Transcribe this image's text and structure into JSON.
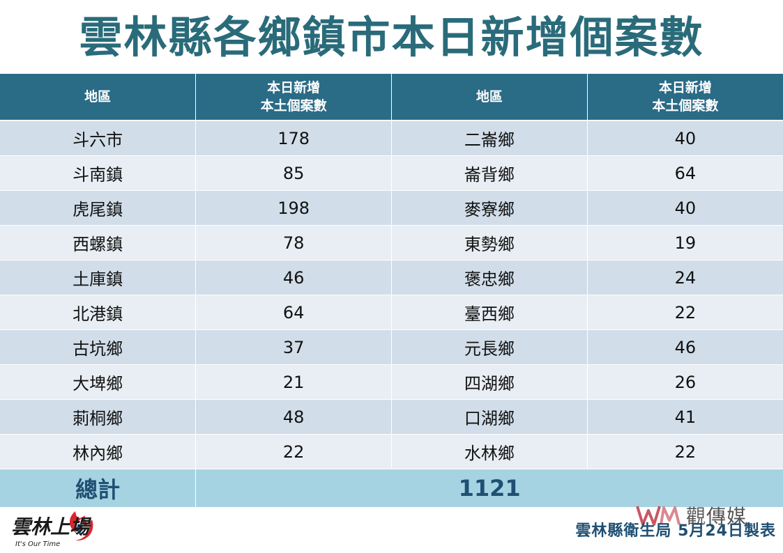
{
  "title": "雲林縣各鄉鎮市本日新增個案數",
  "table": {
    "headers": {
      "region": "地區",
      "cases_line1": "本日新增",
      "cases_line2": "本土個案數"
    },
    "rows": [
      {
        "left_region": "斗六市",
        "left_cases": "178",
        "right_region": "二崙鄉",
        "right_cases": "40"
      },
      {
        "left_region": "斗南鎮",
        "left_cases": "85",
        "right_region": "崙背鄉",
        "right_cases": "64"
      },
      {
        "left_region": "虎尾鎮",
        "left_cases": "198",
        "right_region": "麥寮鄉",
        "right_cases": "40"
      },
      {
        "left_region": "西螺鎮",
        "left_cases": "78",
        "right_region": "東勢鄉",
        "right_cases": "19"
      },
      {
        "left_region": "土庫鎮",
        "left_cases": "46",
        "right_region": "褒忠鄉",
        "right_cases": "24"
      },
      {
        "left_region": "北港鎮",
        "left_cases": "64",
        "right_region": "臺西鄉",
        "right_cases": "22"
      },
      {
        "left_region": "古坑鄉",
        "left_cases": "37",
        "right_region": "元長鄉",
        "right_cases": "46"
      },
      {
        "left_region": "大埤鄉",
        "left_cases": "21",
        "right_region": "四湖鄉",
        "right_cases": "26"
      },
      {
        "left_region": "莿桐鄉",
        "left_cases": "48",
        "right_region": "口湖鄉",
        "right_cases": "41"
      },
      {
        "left_region": "林內鄉",
        "left_cases": "22",
        "right_region": "水林鄉",
        "right_cases": "22"
      }
    ],
    "total_label": "總計",
    "total_value": "1121"
  },
  "footer": {
    "credit": "雲林縣衛生局  5月24日製表"
  },
  "watermark": {
    "text": "觀傳媒",
    "logo": "WM-logo"
  },
  "brand_logo": {
    "text": "雲林上場",
    "tagline": "It's Our Time"
  },
  "colors": {
    "title": "#2a6b7a",
    "header_bg": "#2a6b86",
    "row_odd": "#d1dde8",
    "row_even": "#e9eef4",
    "total_bg": "#a6d3e1",
    "total_text": "#1f4f72"
  }
}
